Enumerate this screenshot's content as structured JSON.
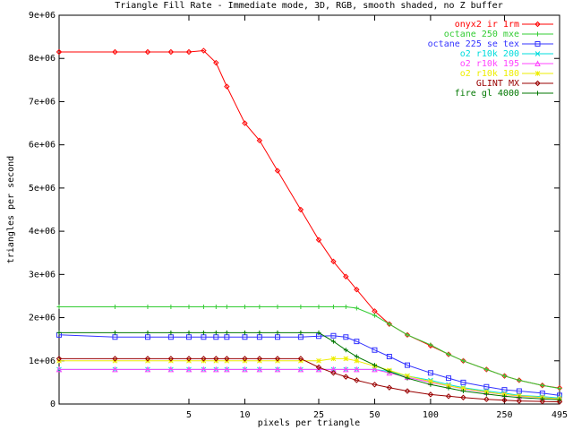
{
  "chart_data": {
    "type": "line",
    "title": "Triangle Fill Rate - Immediate mode, 3D, RGB, smooth shaded, no Z buffer",
    "x_label": "pixels per triangle",
    "y_label": "triangles per second",
    "x_scale": "log",
    "xlim": [
      1,
      495
    ],
    "xticks": [
      5,
      10,
      25,
      50,
      100,
      250,
      495
    ],
    "ylim": [
      0,
      9000000
    ],
    "yticks": [
      0,
      {
        "value": 1000000,
        "label": "1e+06"
      },
      {
        "value": 2000000,
        "label": "2e+06"
      },
      {
        "value": 3000000,
        "label": "3e+06"
      },
      {
        "value": 4000000,
        "label": "4e+06"
      },
      {
        "value": 5000000,
        "label": "5e+06"
      },
      {
        "value": 6000000,
        "label": "6e+06"
      },
      {
        "value": 7000000,
        "label": "7e+06"
      },
      {
        "value": 8000000,
        "label": "8e+06"
      },
      {
        "value": 9000000,
        "label": "9e+06"
      }
    ],
    "legend_position": "top-right",
    "x": [
      1,
      2,
      3,
      4,
      5,
      6,
      7,
      8,
      10,
      12,
      15,
      20,
      25,
      30,
      35,
      40,
      50,
      60,
      75,
      100,
      125,
      150,
      200,
      250,
      300,
      400,
      495
    ],
    "series": [
      {
        "name": "onyx2 ir 1rm",
        "color": "#ff0000",
        "marker": "diamond",
        "values": [
          8150000,
          8150000,
          8150000,
          8150000,
          8150000,
          8180000,
          7900000,
          7350000,
          6500000,
          6100000,
          5400000,
          4500000,
          3800000,
          3300000,
          2950000,
          2650000,
          2150000,
          1850000,
          1600000,
          1350000,
          1150000,
          1000000,
          800000,
          650000,
          550000,
          430000,
          370000
        ]
      },
      {
        "name": "octane 250 mxe",
        "color": "#33cc33",
        "marker": "plus",
        "values": [
          2250000,
          2250000,
          2250000,
          2250000,
          2250000,
          2250000,
          2250000,
          2250000,
          2250000,
          2250000,
          2250000,
          2250000,
          2250000,
          2250000,
          2250000,
          2220000,
          2050000,
          1850000,
          1600000,
          1370000,
          1150000,
          1000000,
          800000,
          650000,
          550000,
          430000,
          360000
        ]
      },
      {
        "name": "octane 225 se tex",
        "color": "#3333ff",
        "marker": "square",
        "values": [
          1600000,
          1550000,
          1550000,
          1550000,
          1550000,
          1550000,
          1550000,
          1550000,
          1550000,
          1550000,
          1550000,
          1550000,
          1570000,
          1580000,
          1550000,
          1450000,
          1250000,
          1100000,
          900000,
          720000,
          600000,
          500000,
          400000,
          330000,
          300000,
          250000,
          200000
        ]
      },
      {
        "name": "o2 r10k 200",
        "color": "#00dddd",
        "marker": "cross",
        "values": [
          800000,
          800000,
          800000,
          800000,
          800000,
          800000,
          800000,
          800000,
          800000,
          800000,
          800000,
          800000,
          800000,
          800000,
          800000,
          800000,
          800000,
          750000,
          650000,
          550000,
          450000,
          380000,
          300000,
          250000,
          200000,
          170000,
          140000
        ]
      },
      {
        "name": "o2 r10k 195",
        "color": "#ff44ff",
        "marker": "triangle",
        "values": [
          800000,
          800000,
          800000,
          800000,
          800000,
          800000,
          800000,
          800000,
          800000,
          800000,
          800000,
          800000,
          800000,
          800000,
          800000,
          800000,
          800000,
          720000,
          620000,
          500000,
          420000,
          350000,
          270000,
          220000,
          180000,
          150000,
          120000
        ]
      },
      {
        "name": "o2 r10k 180",
        "color": "#eeee00",
        "marker": "star",
        "values": [
          1000000,
          1000000,
          1000000,
          1000000,
          1000000,
          1000000,
          1000000,
          1000000,
          1000000,
          1000000,
          1000000,
          1000000,
          1000000,
          1050000,
          1050000,
          1000000,
          880000,
          780000,
          650000,
          520000,
          420000,
          360000,
          280000,
          220000,
          190000,
          150000,
          120000
        ]
      },
      {
        "name": "GLINT MX",
        "color": "#990000",
        "marker": "diamond",
        "values": [
          1050000,
          1050000,
          1050000,
          1050000,
          1050000,
          1050000,
          1050000,
          1050000,
          1050000,
          1050000,
          1050000,
          1050000,
          850000,
          720000,
          630000,
          550000,
          450000,
          380000,
          300000,
          220000,
          180000,
          150000,
          110000,
          90000,
          70000,
          60000,
          50000
        ]
      },
      {
        "name": "fire gl 4000",
        "color": "#007700",
        "marker": "plus",
        "values": [
          1650000,
          1650000,
          1650000,
          1650000,
          1650000,
          1650000,
          1650000,
          1650000,
          1650000,
          1650000,
          1650000,
          1650000,
          1650000,
          1450000,
          1250000,
          1100000,
          900000,
          750000,
          600000,
          450000,
          370000,
          300000,
          230000,
          180000,
          150000,
          120000,
          100000
        ]
      }
    ]
  }
}
